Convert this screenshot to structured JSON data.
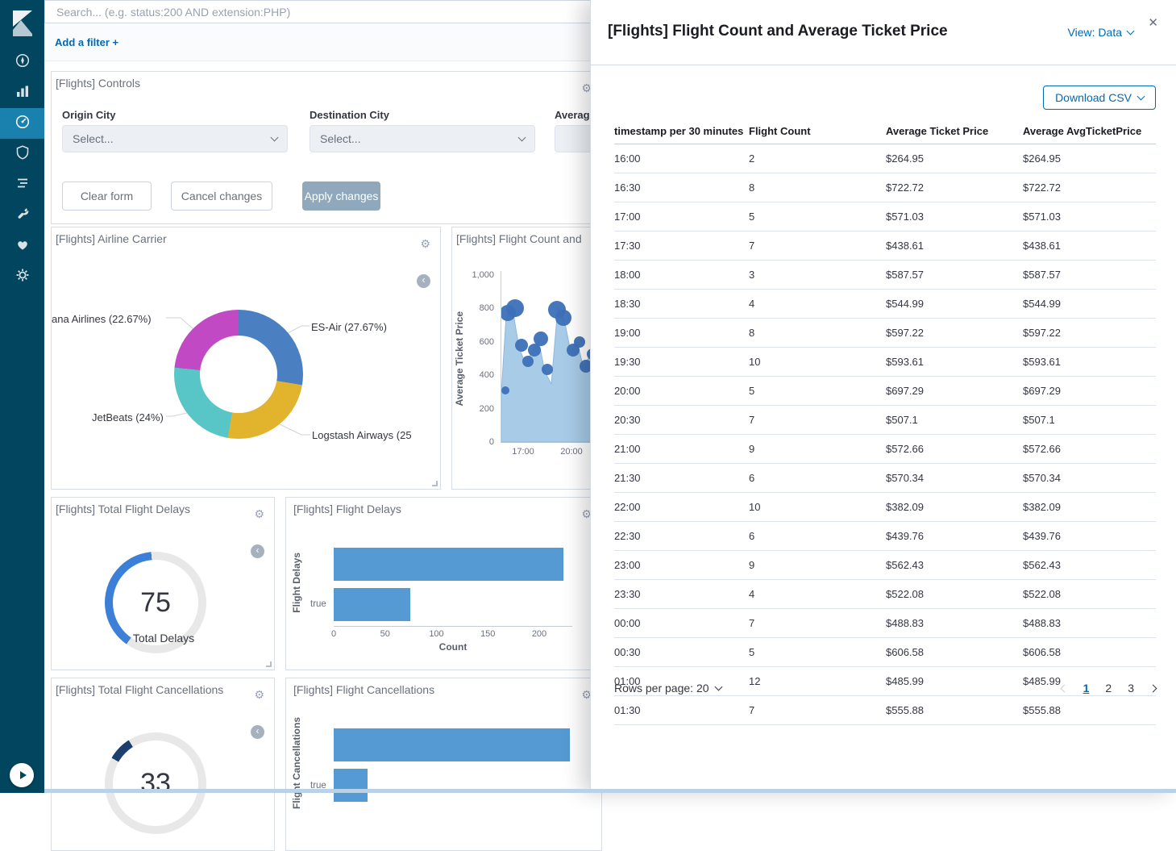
{
  "icons": {
    "gear": "⚙",
    "close": "✕",
    "back": "‹"
  },
  "colors": {
    "accent": "#006bb4",
    "sidebar_bg": "#01455e",
    "sidebar_active_bg": "#1a80ad",
    "bar_blue": "#559ad3",
    "gauge_blue": "#3b7fd8",
    "gauge_navy": "#1c3f6e",
    "area_blue": "#a8cbe8",
    "bubble_blue": "#3c70b7"
  },
  "sidebar": {
    "items": [
      {
        "name": "discover",
        "icon": "compass-icon",
        "active": false
      },
      {
        "name": "visualize",
        "icon": "bar-chart-icon",
        "active": false
      },
      {
        "name": "dashboard",
        "icon": "gauge-icon",
        "active": true
      },
      {
        "name": "apm",
        "icon": "shield-icon",
        "active": false
      },
      {
        "name": "logging",
        "icon": "list-icon",
        "active": false
      },
      {
        "name": "dev-tools",
        "icon": "wrench-icon",
        "active": false
      },
      {
        "name": "monitoring",
        "icon": "heart-icon",
        "active": false
      },
      {
        "name": "management",
        "icon": "gear-icon",
        "active": false
      }
    ]
  },
  "topbar": {
    "search_placeholder": "Search... (e.g. status:200 AND extension:PHP)",
    "add_filter": "Add a filter +"
  },
  "panels": {
    "controls": {
      "title": "[Flights] Controls",
      "fields": [
        {
          "label": "Origin City",
          "placeholder": "Select..."
        },
        {
          "label": "Destination City",
          "placeholder": "Select..."
        },
        {
          "label": "Averag",
          "placeholder": ""
        }
      ],
      "clear": "Clear form",
      "cancel": "Cancel changes",
      "apply": "Apply changes"
    },
    "airline": {
      "title": "[Flights] Airline Carrier",
      "labels": [
        "ana Airlines (22.67%)",
        "ES-Air (27.67%)",
        "JetBeats (24%)",
        "Logstash Airways (25"
      ]
    },
    "flight_count": {
      "title": "[Flights] Flight Count and"
    },
    "total_delays": {
      "title": "[Flights] Total Flight Delays",
      "value": "75",
      "label": "Total Delays"
    },
    "flight_delays": {
      "title": "[Flights] Flight Delays",
      "category": "true"
    },
    "total_cancellations": {
      "title": "[Flights] Total Flight Cancellations",
      "value": "33"
    },
    "flight_cancellations": {
      "title": "[Flights] Flight Cancellations",
      "category": "true"
    }
  },
  "chart_data": {
    "airline_carrier": {
      "type": "pie",
      "slices": [
        {
          "label": "ES-Air",
          "pct": 27.67,
          "color": "#4a7fc1"
        },
        {
          "label": "Logstash Airways",
          "pct": 25.0,
          "color": "#e2b32c"
        },
        {
          "label": "JetBeats",
          "pct": 24.0,
          "color": "#58c5c6"
        },
        {
          "label": "Kibana Airlines",
          "pct": 22.67,
          "color": "#c249c4"
        }
      ]
    },
    "flight_count_price": {
      "type": "area-bubble",
      "title": "[Flights] Flight Count and Average Ticket Price",
      "ylabel": "Average Ticket Price",
      "ylim": [
        0,
        1000
      ],
      "y_ticks": [
        "1,000",
        "800",
        "600",
        "400",
        "200",
        "0"
      ],
      "x_ticks": [
        "17:00",
        "20:00"
      ],
      "area_color": "#a8cbe8",
      "bubble_color": "#3c70b7",
      "area_points": [
        [
          0,
          150
        ],
        [
          6,
          55
        ],
        [
          14,
          48
        ],
        [
          22,
          95
        ],
        [
          30,
          115
        ],
        [
          38,
          100
        ],
        [
          46,
          85
        ],
        [
          54,
          125
        ],
        [
          62,
          140
        ],
        [
          70,
          45
        ],
        [
          78,
          60
        ],
        [
          86,
          100
        ],
        [
          94,
          88
        ],
        [
          102,
          120
        ],
        [
          110,
          104
        ],
        [
          118,
          128
        ],
        [
          126,
          118
        ]
      ],
      "bubbles": [
        [
          8,
          52,
          10
        ],
        [
          17,
          46,
          11
        ],
        [
          25,
          92,
          8
        ],
        [
          33,
          112,
          7
        ],
        [
          41,
          98,
          8
        ],
        [
          49,
          84,
          9
        ],
        [
          57,
          122,
          7
        ],
        [
          69,
          48,
          11
        ],
        [
          77,
          58,
          10
        ],
        [
          89,
          98,
          8
        ],
        [
          97,
          88,
          7
        ],
        [
          105,
          118,
          8
        ],
        [
          113,
          103,
          7
        ],
        [
          121,
          128,
          6
        ],
        [
          5,
          148,
          5
        ]
      ]
    },
    "total_delays_gauge": {
      "type": "gauge",
      "value": 75,
      "color": "#3b7fd8",
      "track": "#e8e8e8",
      "start_deg": 215,
      "sweep_deg": 140
    },
    "total_cancellations_gauge": {
      "type": "gauge",
      "value": 33,
      "color": "#1c3f6e",
      "track": "#e8e8e8",
      "start_deg": 300,
      "sweep_deg": 28
    },
    "flight_delays": {
      "type": "bar",
      "categories": [
        "false",
        "true"
      ],
      "values": [
        224,
        75
      ],
      "xmax": 250,
      "x_ticks": [
        "0",
        "50",
        "100",
        "150",
        "200"
      ],
      "xlabel": "Count",
      "ylabel": "Flight Delays",
      "bar_color": "#559ad3"
    },
    "flight_cancellations": {
      "type": "bar",
      "categories": [
        "false",
        "true"
      ],
      "values": [
        230,
        33
      ],
      "xmax": 250,
      "ylabel": "Flight Cancellations",
      "bar_color": "#559ad3"
    }
  },
  "flyout": {
    "title": "[Flights] Flight Count and Average Ticket Price",
    "view_label": "View: Data",
    "download_label": "Download CSV",
    "table": {
      "columns": [
        "timestamp per 30 minutes",
        "Flight Count",
        "Average Ticket Price",
        "Average AvgTicketPrice"
      ],
      "rows": [
        [
          "16:00",
          "2",
          "$264.95",
          "$264.95"
        ],
        [
          "16:30",
          "8",
          "$722.72",
          "$722.72"
        ],
        [
          "17:00",
          "5",
          "$571.03",
          "$571.03"
        ],
        [
          "17:30",
          "7",
          "$438.61",
          "$438.61"
        ],
        [
          "18:00",
          "3",
          "$587.57",
          "$587.57"
        ],
        [
          "18:30",
          "4",
          "$544.99",
          "$544.99"
        ],
        [
          "19:00",
          "8",
          "$597.22",
          "$597.22"
        ],
        [
          "19:30",
          "10",
          "$593.61",
          "$593.61"
        ],
        [
          "20:00",
          "5",
          "$697.29",
          "$697.29"
        ],
        [
          "20:30",
          "7",
          "$507.1",
          "$507.1"
        ],
        [
          "21:00",
          "9",
          "$572.66",
          "$572.66"
        ],
        [
          "21:30",
          "6",
          "$570.34",
          "$570.34"
        ],
        [
          "22:00",
          "10",
          "$382.09",
          "$382.09"
        ],
        [
          "22:30",
          "6",
          "$439.76",
          "$439.76"
        ],
        [
          "23:00",
          "9",
          "$562.43",
          "$562.43"
        ],
        [
          "23:30",
          "4",
          "$522.08",
          "$522.08"
        ],
        [
          "00:00",
          "7",
          "$488.83",
          "$488.83"
        ],
        [
          "00:30",
          "5",
          "$606.58",
          "$606.58"
        ],
        [
          "01:00",
          "12",
          "$485.99",
          "$485.99"
        ],
        [
          "01:30",
          "7",
          "$555.88",
          "$555.88"
        ]
      ]
    },
    "rows_per_page": "Rows per page: 20",
    "pagination": {
      "pages": [
        "1",
        "2",
        "3"
      ],
      "active": "1"
    }
  }
}
